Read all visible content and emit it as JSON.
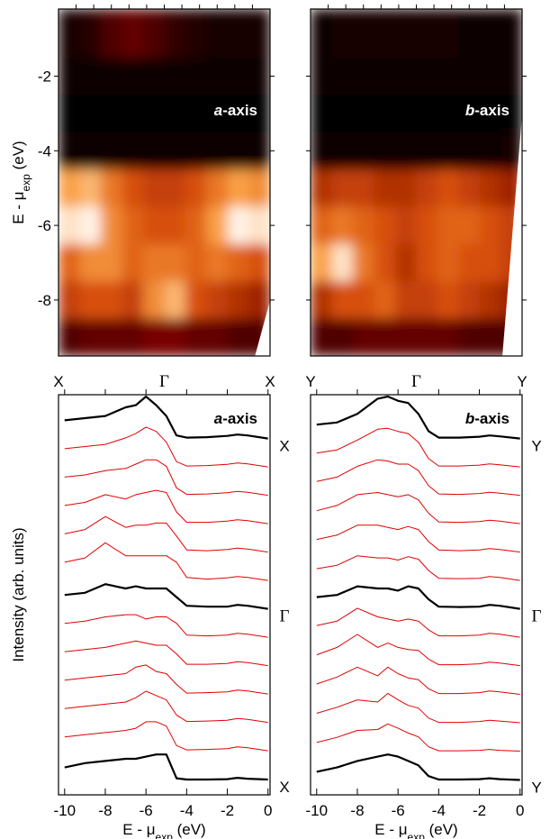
{
  "chart_data": [
    {
      "type": "heatmap",
      "panel_label": [
        "a",
        "-axis"
      ],
      "ylabel": [
        "E - μ",
        "exp",
        " (eV)"
      ],
      "ylim": [
        -0.2,
        -9.5
      ],
      "yticks": [
        -2,
        -4,
        -6,
        -8
      ],
      "ytick_labels": true,
      "categories": [
        "X",
        "Γ",
        "X"
      ],
      "energies": [
        -1,
        -2,
        -3,
        -4,
        -5,
        -6,
        -7,
        -8,
        -9
      ],
      "z": [
        [
          0.05,
          0.1,
          0.2,
          0.25,
          0.2,
          0.12,
          0.08,
          0.06,
          0.05,
          0.05
        ],
        [
          0.02,
          0.02,
          0.02,
          0.02,
          0.02,
          0.02,
          0.02,
          0.02,
          0.02,
          0.02
        ],
        [
          0.01,
          0.01,
          0.01,
          0.01,
          0.01,
          0.01,
          0.01,
          0.01,
          0.01,
          0.01
        ],
        [
          0.02,
          0.02,
          0.02,
          0.02,
          0.02,
          0.02,
          0.02,
          0.02,
          0.02,
          0.02
        ],
        [
          0.75,
          0.8,
          0.65,
          0.55,
          0.5,
          0.5,
          0.55,
          0.65,
          0.75,
          0.7
        ],
        [
          0.9,
          0.95,
          0.7,
          0.6,
          0.55,
          0.55,
          0.6,
          0.75,
          0.95,
          0.9
        ],
        [
          0.6,
          0.7,
          0.7,
          0.6,
          0.65,
          0.65,
          0.6,
          0.65,
          0.6,
          0.55
        ],
        [
          0.5,
          0.55,
          0.55,
          0.5,
          0.7,
          0.8,
          0.55,
          0.5,
          0.45,
          0.4
        ],
        [
          0.2,
          0.25,
          0.25,
          0.25,
          0.3,
          0.3,
          0.25,
          0.25,
          0.2,
          0.2
        ]
      ]
    },
    {
      "type": "heatmap",
      "panel_label": [
        "b",
        "-axis"
      ],
      "ylim": [
        -0.2,
        -9.5
      ],
      "yticks": [
        -2,
        -4,
        -6,
        -8
      ],
      "ytick_labels": false,
      "categories": [
        "Y",
        "Γ",
        "Y"
      ],
      "energies": [
        -1,
        -2,
        -3,
        -4,
        -5,
        -6,
        -7,
        -8,
        -9
      ],
      "z": [
        [
          0.04,
          0.05,
          0.05,
          0.06,
          0.06,
          0.05,
          0.05,
          0.04,
          0.04,
          0.04
        ],
        [
          0.02,
          0.02,
          0.02,
          0.02,
          0.02,
          0.02,
          0.02,
          0.02,
          0.02,
          0.02
        ],
        [
          0.01,
          0.01,
          0.01,
          0.01,
          0.01,
          0.01,
          0.01,
          0.01,
          0.01,
          0.01
        ],
        [
          0.02,
          0.02,
          0.02,
          0.02,
          0.02,
          0.02,
          0.02,
          0.02,
          0.03,
          0.05
        ],
        [
          0.45,
          0.5,
          0.5,
          0.45,
          0.45,
          0.5,
          0.55,
          0.5,
          0.45,
          0.4
        ],
        [
          0.6,
          0.65,
          0.6,
          0.55,
          0.5,
          0.55,
          0.6,
          0.6,
          0.55,
          0.5
        ],
        [
          0.75,
          0.9,
          0.65,
          0.55,
          0.45,
          0.55,
          0.6,
          0.55,
          0.55,
          0.5
        ],
        [
          0.45,
          0.55,
          0.55,
          0.6,
          0.5,
          0.5,
          0.55,
          0.5,
          0.45,
          0.4
        ],
        [
          0.2,
          0.2,
          0.25,
          0.25,
          0.25,
          0.25,
          0.25,
          0.2,
          0.2,
          0.2
        ]
      ]
    },
    {
      "type": "line",
      "panel_label": [
        "a",
        "-axis"
      ],
      "ylabel": "Intensity (arb. units)",
      "xlabel": [
        "E - μ",
        "exp",
        " (eV)"
      ],
      "xlim": [
        -10.3,
        0.1
      ],
      "xticks": [
        -10,
        -8,
        -6,
        -4,
        -2,
        0
      ],
      "x": [
        -10,
        -9,
        -8,
        -7,
        -6.5,
        -6,
        -5.5,
        -5,
        -4.5,
        -4,
        -3,
        -2,
        -1.5,
        -1,
        0
      ],
      "series": [
        {
          "color": "#000000",
          "label": "X",
          "values": [
            0.45,
            0.5,
            0.55,
            0.75,
            0.8,
            1.0,
            0.8,
            0.55,
            0.1,
            0.05,
            0.06,
            0.09,
            0.12,
            0.1,
            0.03
          ]
        },
        {
          "color": "#e00000",
          "values": [
            0.45,
            0.5,
            0.55,
            0.7,
            0.8,
            0.95,
            0.85,
            0.6,
            0.15,
            0.05,
            0.06,
            0.09,
            0.12,
            0.1,
            0.03
          ]
        },
        {
          "color": "#e00000",
          "values": [
            0.45,
            0.5,
            0.6,
            0.65,
            0.75,
            0.85,
            0.85,
            0.7,
            0.2,
            0.05,
            0.06,
            0.09,
            0.12,
            0.1,
            0.03
          ]
        },
        {
          "color": "#e00000",
          "values": [
            0.45,
            0.52,
            0.7,
            0.6,
            0.7,
            0.75,
            0.8,
            0.75,
            0.3,
            0.06,
            0.06,
            0.09,
            0.12,
            0.1,
            0.03
          ]
        },
        {
          "color": "#e00000",
          "values": [
            0.45,
            0.55,
            0.85,
            0.6,
            0.65,
            0.65,
            0.7,
            0.7,
            0.4,
            0.08,
            0.06,
            0.09,
            0.12,
            0.1,
            0.03
          ]
        },
        {
          "color": "#e00000",
          "values": [
            0.45,
            0.55,
            0.9,
            0.6,
            0.6,
            0.6,
            0.6,
            0.6,
            0.45,
            0.1,
            0.06,
            0.09,
            0.12,
            0.1,
            0.03
          ]
        },
        {
          "color": "#000000",
          "label": "Γ",
          "values": [
            0.35,
            0.4,
            0.6,
            0.5,
            0.55,
            0.5,
            0.5,
            0.5,
            0.3,
            0.1,
            0.08,
            0.08,
            0.12,
            0.1,
            0.03
          ]
        },
        {
          "color": "#e00000",
          "values": [
            0.35,
            0.4,
            0.5,
            0.55,
            0.55,
            0.45,
            0.5,
            0.5,
            0.35,
            0.08,
            0.06,
            0.08,
            0.12,
            0.1,
            0.03
          ]
        },
        {
          "color": "#e00000",
          "values": [
            0.35,
            0.4,
            0.45,
            0.55,
            0.6,
            0.55,
            0.5,
            0.5,
            0.3,
            0.06,
            0.06,
            0.08,
            0.12,
            0.1,
            0.03
          ]
        },
        {
          "color": "#e00000",
          "values": [
            0.35,
            0.4,
            0.45,
            0.5,
            0.65,
            0.7,
            0.55,
            0.5,
            0.25,
            0.05,
            0.06,
            0.08,
            0.12,
            0.1,
            0.03
          ]
        },
        {
          "color": "#e00000",
          "values": [
            0.35,
            0.4,
            0.45,
            0.5,
            0.6,
            0.75,
            0.65,
            0.55,
            0.2,
            0.05,
            0.06,
            0.08,
            0.12,
            0.1,
            0.03
          ]
        },
        {
          "color": "#e00000",
          "values": [
            0.35,
            0.4,
            0.45,
            0.5,
            0.55,
            0.7,
            0.7,
            0.6,
            0.15,
            0.05,
            0.06,
            0.08,
            0.12,
            0.1,
            0.03
          ]
        },
        {
          "color": "#000000",
          "label": "X",
          "values": [
            0.3,
            0.4,
            0.45,
            0.5,
            0.5,
            0.55,
            0.6,
            0.6,
            0.05,
            0.02,
            0.02,
            0.03,
            0.06,
            0.04,
            0.02
          ]
        }
      ]
    },
    {
      "type": "line",
      "panel_label": [
        "b",
        "-axis"
      ],
      "xlabel": [
        "E - μ",
        "exp",
        " (eV)"
      ],
      "xlim": [
        -10.3,
        0.1
      ],
      "xticks": [
        -10,
        -8,
        -6,
        -4,
        -2,
        0
      ],
      "x": [
        -10,
        -9,
        -8,
        -7,
        -6.5,
        -6,
        -5.5,
        -5,
        -4.5,
        -4,
        -3,
        -2,
        -1.5,
        -1,
        0
      ],
      "series": [
        {
          "color": "#000000",
          "label": "Y",
          "values": [
            0.35,
            0.4,
            0.6,
            0.95,
            1.0,
            0.9,
            0.85,
            0.6,
            0.2,
            0.05,
            0.05,
            0.07,
            0.1,
            0.08,
            0.03
          ]
        },
        {
          "color": "#e00000",
          "values": [
            0.35,
            0.42,
            0.65,
            0.9,
            0.92,
            0.85,
            0.8,
            0.6,
            0.22,
            0.05,
            0.05,
            0.07,
            0.1,
            0.08,
            0.03
          ]
        },
        {
          "color": "#e00000",
          "values": [
            0.35,
            0.45,
            0.7,
            0.85,
            0.82,
            0.75,
            0.75,
            0.6,
            0.25,
            0.06,
            0.05,
            0.07,
            0.1,
            0.08,
            0.03
          ]
        },
        {
          "color": "#e00000",
          "values": [
            0.33,
            0.45,
            0.7,
            0.75,
            0.7,
            0.65,
            0.7,
            0.58,
            0.27,
            0.07,
            0.06,
            0.08,
            0.11,
            0.09,
            0.03
          ]
        },
        {
          "color": "#e00000",
          "values": [
            0.32,
            0.42,
            0.65,
            0.65,
            0.6,
            0.55,
            0.62,
            0.55,
            0.27,
            0.08,
            0.06,
            0.08,
            0.11,
            0.09,
            0.03
          ]
        },
        {
          "color": "#e00000",
          "values": [
            0.3,
            0.38,
            0.6,
            0.55,
            0.55,
            0.5,
            0.58,
            0.52,
            0.26,
            0.08,
            0.07,
            0.08,
            0.12,
            0.1,
            0.03
          ]
        },
        {
          "color": "#000000",
          "label": "Γ",
          "values": [
            0.3,
            0.35,
            0.55,
            0.5,
            0.5,
            0.45,
            0.55,
            0.5,
            0.25,
            0.08,
            0.07,
            0.08,
            0.12,
            0.1,
            0.03
          ]
        },
        {
          "color": "#e00000",
          "values": [
            0.3,
            0.4,
            0.7,
            0.5,
            0.45,
            0.4,
            0.45,
            0.4,
            0.2,
            0.06,
            0.06,
            0.08,
            0.12,
            0.1,
            0.03
          ]
        },
        {
          "color": "#e00000",
          "values": [
            0.28,
            0.45,
            0.75,
            0.45,
            0.55,
            0.45,
            0.4,
            0.38,
            0.18,
            0.05,
            0.05,
            0.07,
            0.11,
            0.09,
            0.03
          ]
        },
        {
          "color": "#e00000",
          "values": [
            0.26,
            0.42,
            0.65,
            0.45,
            0.65,
            0.5,
            0.4,
            0.36,
            0.15,
            0.04,
            0.04,
            0.06,
            0.1,
            0.08,
            0.02
          ]
        },
        {
          "color": "#e00000",
          "values": [
            0.24,
            0.38,
            0.55,
            0.5,
            0.7,
            0.55,
            0.42,
            0.36,
            0.13,
            0.03,
            0.03,
            0.05,
            0.08,
            0.06,
            0.02
          ]
        },
        {
          "color": "#e00000",
          "values": [
            0.22,
            0.34,
            0.5,
            0.52,
            0.65,
            0.55,
            0.44,
            0.35,
            0.12,
            0.03,
            0.03,
            0.04,
            0.06,
            0.04,
            0.02
          ]
        },
        {
          "color": "#000000",
          "label": "Y",
          "values": [
            0.2,
            0.3,
            0.45,
            0.55,
            0.6,
            0.55,
            0.45,
            0.35,
            0.1,
            0.02,
            0.02,
            0.03,
            0.05,
            0.03,
            0.01
          ]
        }
      ]
    }
  ]
}
